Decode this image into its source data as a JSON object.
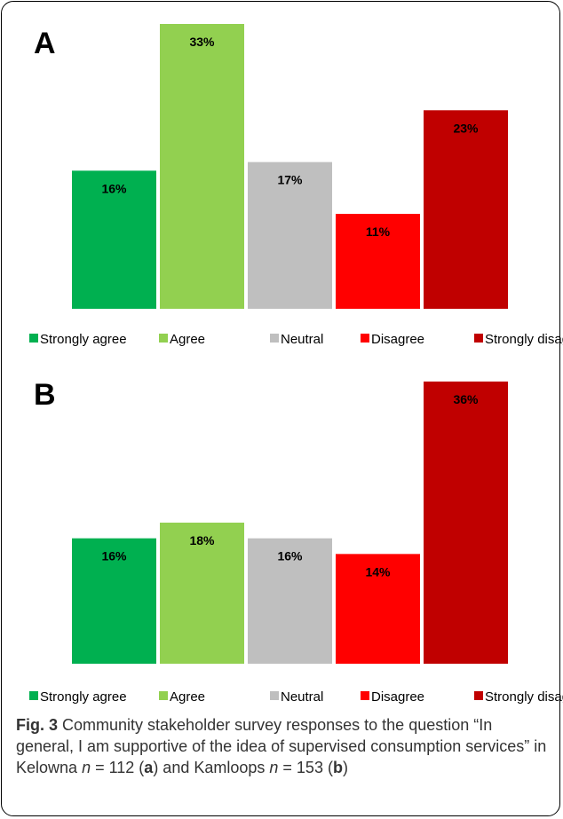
{
  "chart_data": [
    {
      "type": "bar",
      "panel_label": "A",
      "categories": [
        "Strongly agree",
        "Agree",
        "Neutral",
        "Disagree",
        "Strongly disagree"
      ],
      "values": [
        16,
        33,
        17,
        11,
        23
      ],
      "data_labels": [
        "16%",
        "33%",
        "17%",
        "11%",
        "23%"
      ],
      "colors": [
        "#00b050",
        "#92d050",
        "#bfbfbf",
        "#ff0000",
        "#c00000"
      ],
      "ylim": [
        0,
        33
      ],
      "legend": "bottom",
      "grid": false
    },
    {
      "type": "bar",
      "panel_label": "B",
      "categories": [
        "Strongly agree",
        "Agree",
        "Neutral",
        "Disagree",
        "Strongly disagree"
      ],
      "values": [
        16,
        18,
        16,
        14,
        36
      ],
      "data_labels": [
        "16%",
        "18%",
        "16%",
        "14%",
        "36%"
      ],
      "colors": [
        "#00b050",
        "#92d050",
        "#bfbfbf",
        "#ff0000",
        "#c00000"
      ],
      "ylim": [
        0,
        36
      ],
      "legend": "bottom",
      "grid": false
    }
  ],
  "caption": {
    "fig_label": "Fig. 3",
    "text_1": " Community stakeholder survey responses to the question “In general, I am supportive of the idea of supervised consumption services” in Kelowna ",
    "n1_var": "n",
    "n1_value": " = 112 (",
    "a_label": "a",
    "text_2": ") and Kamloops ",
    "n2_var": "n",
    "n2_value": " = 153 (",
    "b_label": "b",
    "text_3": ")"
  }
}
